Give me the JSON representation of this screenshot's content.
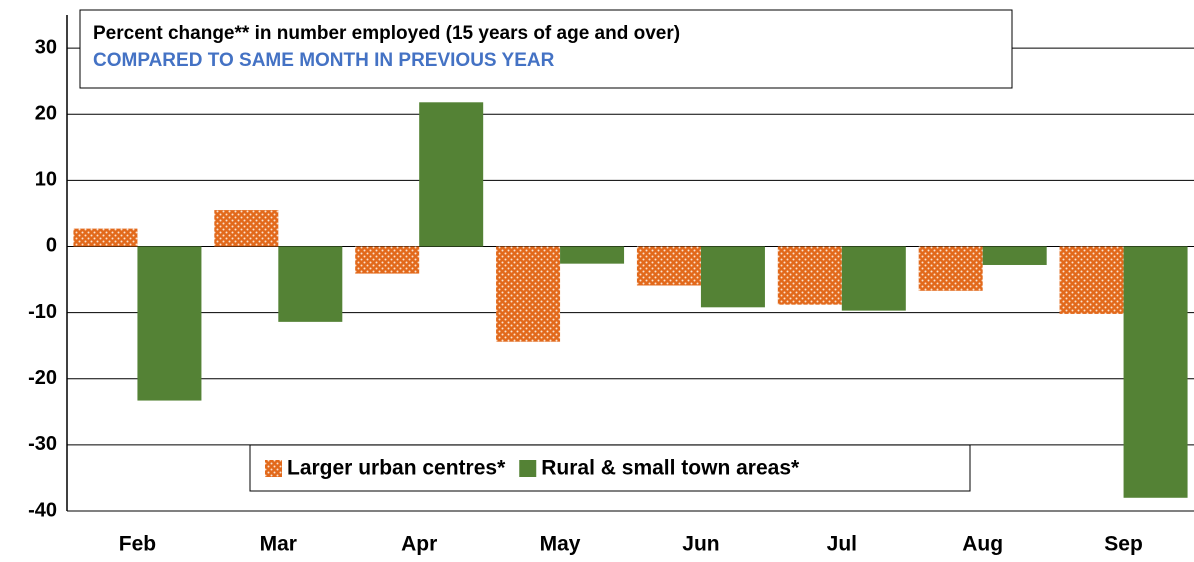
{
  "chart_data": {
    "type": "bar",
    "title": "Percent change** in number employed (15 years of age and over)",
    "subtitle": "COMPARED TO SAME MONTH IN PREVIOUS YEAR",
    "categories": [
      "Feb",
      "Mar",
      "Apr",
      "May",
      "Jun",
      "Jul",
      "Aug",
      "Sep"
    ],
    "series": [
      {
        "name": "Larger urban centres*",
        "color": "#e2691b",
        "values": [
          2.7,
          5.5,
          -4.1,
          -14.4,
          -5.9,
          -8.8,
          -6.7,
          -10.2
        ]
      },
      {
        "name": "Rural & small town areas*",
        "color": "#548235",
        "values": [
          -23.3,
          -11.4,
          21.8,
          -2.6,
          -9.2,
          -9.7,
          -2.8,
          -38.0
        ]
      }
    ],
    "ylim": [
      -40,
      35
    ],
    "yticks": [
      -40,
      -30,
      -20,
      -10,
      0,
      10,
      20,
      30
    ],
    "grid": true
  }
}
